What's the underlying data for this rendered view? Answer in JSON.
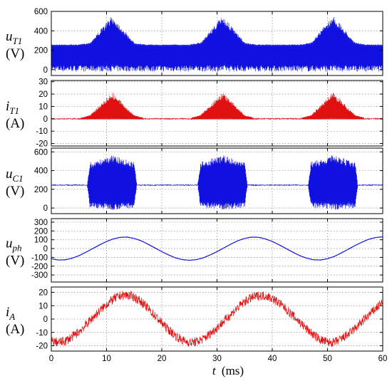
{
  "chart_data": [
    {
      "type": "line",
      "ylabel_var": "u",
      "ylabel_sub": "T1",
      "ylabel_unit": "(V)",
      "ylim": [
        -60,
        600
      ],
      "yticks": [
        0,
        200,
        400,
        600
      ],
      "xlim": [
        0,
        60
      ],
      "xticks": [
        0,
        10,
        20,
        30,
        40,
        50,
        60
      ],
      "grid": true,
      "color": "#1010e0",
      "series": [
        {
          "x": [
            0,
            5,
            7,
            11,
            15,
            17,
            25,
            27,
            31,
            35,
            37,
            45,
            47,
            51,
            55,
            57,
            60
          ],
          "lower": [
            -20,
            -20,
            -20,
            -20,
            -20,
            -20,
            -20,
            -20,
            -20,
            -20,
            -20,
            -20,
            -20,
            -20,
            -20,
            -20,
            -20
          ],
          "upper": [
            260,
            260,
            280,
            560,
            280,
            260,
            260,
            280,
            560,
            280,
            260,
            260,
            280,
            560,
            280,
            260,
            260
          ],
          "mid": [
            230,
            230,
            230,
            230,
            230,
            230,
            230,
            230,
            230,
            230,
            230,
            230,
            230,
            230,
            230,
            230,
            230
          ]
        }
      ]
    },
    {
      "type": "line",
      "ylabel_var": "i",
      "ylabel_sub": "T1",
      "ylabel_unit": "(A)",
      "ylim": [
        -22,
        31
      ],
      "yticks": [
        -20,
        -10,
        0,
        10,
        20,
        30
      ],
      "xlim": [
        0,
        60
      ],
      "xticks": [
        0,
        10,
        20,
        30,
        40,
        50,
        60
      ],
      "grid": true,
      "color": "#e01010",
      "series": [
        {
          "x": [
            0,
            5,
            7,
            11,
            15,
            17,
            25,
            27,
            31,
            35,
            37,
            45,
            47,
            51,
            55,
            57,
            60
          ],
          "lower": [
            -0.5,
            -0.5,
            -0.5,
            -0.5,
            -0.5,
            -0.5,
            -0.5,
            -0.5,
            -0.5,
            -0.5,
            -0.5,
            -0.5,
            -0.5,
            -0.5,
            -0.5,
            -0.5,
            -0.5
          ],
          "upper": [
            0.5,
            0.5,
            3,
            22,
            3,
            0.5,
            0.5,
            3,
            22,
            3,
            0.5,
            0.5,
            3,
            22,
            3,
            0.5,
            0.5
          ],
          "mid": [
            0,
            0,
            0,
            0,
            0,
            0,
            0,
            0,
            0,
            0,
            0,
            0,
            0,
            0,
            0,
            0,
            0
          ]
        }
      ]
    },
    {
      "type": "line",
      "ylabel_var": "u",
      "ylabel_sub": "C1",
      "ylabel_unit": "(V)",
      "ylim": [
        -60,
        640
      ],
      "yticks": [
        0,
        200,
        400,
        600
      ],
      "xlim": [
        0,
        60
      ],
      "xticks": [
        0,
        10,
        20,
        30,
        40,
        50,
        60
      ],
      "grid": true,
      "color": "#1010e0",
      "series": [
        {
          "x": [
            0,
            6.5,
            7,
            11,
            15,
            15.5,
            26.5,
            27,
            31,
            35,
            35.5,
            46.5,
            47,
            51,
            55,
            55.5,
            60
          ],
          "lower": [
            240,
            240,
            0,
            -20,
            0,
            240,
            240,
            0,
            -20,
            0,
            240,
            240,
            0,
            -20,
            0,
            240,
            240
          ],
          "upper": [
            250,
            250,
            490,
            570,
            490,
            250,
            250,
            490,
            570,
            490,
            250,
            250,
            490,
            570,
            490,
            250,
            250
          ],
          "mid": [
            245,
            245,
            245,
            245,
            245,
            245,
            245,
            245,
            245,
            245,
            245,
            245,
            245,
            245,
            245,
            245,
            245
          ]
        }
      ]
    },
    {
      "type": "line",
      "ylabel_var": "u",
      "ylabel_sub": "ph",
      "ylabel_unit": "(V)",
      "ylim": [
        -380,
        340
      ],
      "yticks": [
        -300,
        -200,
        -100,
        0,
        100,
        200,
        300
      ],
      "xlim": [
        0,
        60
      ],
      "xticks": [
        0,
        10,
        20,
        30,
        40,
        50,
        60
      ],
      "grid": true,
      "color": "#1010e0",
      "series": [
        {
          "name": "",
          "x": [
            0,
            1.25,
            2.5,
            3.75,
            5,
            6.25,
            7.5,
            8.75,
            10,
            11.25,
            12.5,
            13.75,
            15,
            16.25,
            17.5,
            18.75,
            20,
            21.25,
            22.5,
            23.75,
            25,
            26.25,
            27.5,
            28.75,
            30,
            31.25,
            32.5,
            33.75,
            35,
            36.25,
            37.5,
            38.75,
            40,
            41.25,
            42.5,
            43.75,
            45,
            46.25,
            47.5,
            48.75,
            50,
            51.25,
            52.5,
            53.75,
            55,
            56.25,
            57.5,
            58.75,
            60
          ],
          "y": [
            -115,
            -130,
            -128,
            -110,
            -81,
            -42,
            0,
            42,
            81,
            110,
            128,
            130,
            115,
            89,
            50,
            8,
            -35,
            -73,
            -106,
            -126,
            -133,
            -126,
            -106,
            -73,
            -35,
            8,
            50,
            89,
            115,
            130,
            128,
            110,
            81,
            42,
            0,
            -42,
            -81,
            -110,
            -128,
            -130,
            -115,
            -89,
            -50,
            -8,
            35,
            73,
            106,
            126,
            133
          ]
        }
      ]
    },
    {
      "type": "line",
      "ylabel_var": "i",
      "ylabel_sub": "A",
      "ylabel_unit": "(A)",
      "ylim": [
        -24,
        24
      ],
      "yticks": [
        -20,
        -10,
        0,
        10,
        20
      ],
      "xlim": [
        0,
        60
      ],
      "xticks": [
        0,
        10,
        20,
        30,
        40,
        50,
        60
      ],
      "grid": true,
      "color": "#e01010",
      "series": [
        {
          "name": "",
          "x": [
            0,
            1.25,
            2.5,
            3.75,
            5,
            6.25,
            7.5,
            8.75,
            10,
            11.25,
            12.5,
            13.75,
            15,
            16.25,
            17.5,
            18.75,
            20,
            21.25,
            22.5,
            23.75,
            25,
            26.25,
            27.5,
            28.75,
            30,
            31.25,
            32.5,
            33.75,
            35,
            36.25,
            37.5,
            38.75,
            40,
            41.25,
            42.5,
            43.75,
            45,
            46.25,
            47.5,
            48.75,
            50,
            51.25,
            52.5,
            53.75,
            55,
            56.25,
            57.5,
            58.75,
            60
          ],
          "y": [
            -16.5,
            -17.5,
            -16.5,
            -13.5,
            -9.5,
            -4.5,
            1,
            6,
            11,
            15,
            17.5,
            18,
            16.5,
            13,
            8,
            2.5,
            -3,
            -8,
            -12.5,
            -16,
            -17.5,
            -17,
            -15,
            -11,
            -6.5,
            -1.5,
            3.5,
            8.5,
            13,
            16,
            17.5,
            17.5,
            15.5,
            12,
            7.5,
            2.5,
            -2.5,
            -7.5,
            -12,
            -15.5,
            -17.5,
            -17.5,
            -15,
            -11.5,
            -7,
            -2,
            3,
            8,
            12.5
          ],
          "noise": 3.5
        }
      ]
    }
  ],
  "xaxis": {
    "var": "t",
    "unit": "(ms)"
  }
}
